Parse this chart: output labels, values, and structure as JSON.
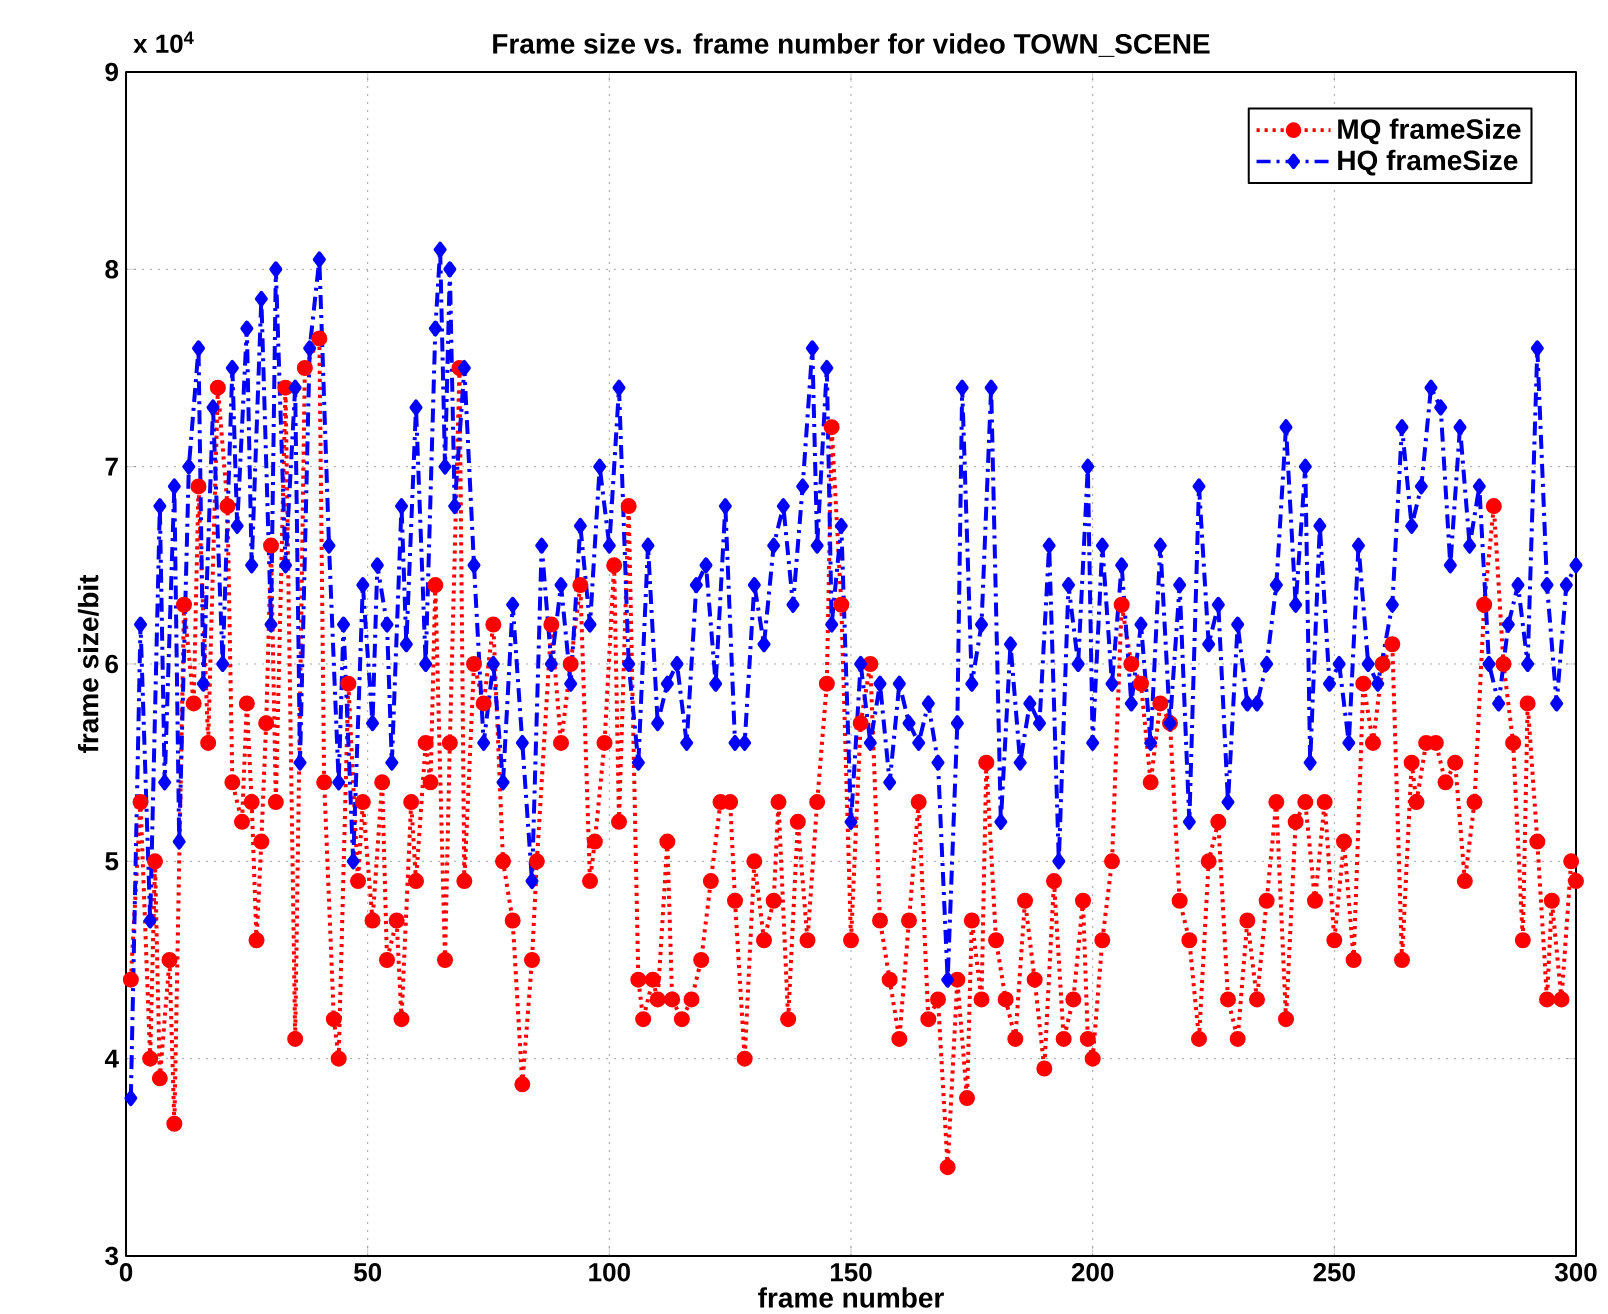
{
  "chart_data": {
    "type": "line",
    "title": "Frame size vs. frame number for video TOWN_SCENE",
    "xlabel": "frame number",
    "ylabel": "frame size/bit",
    "annotations": [
      "x 10$^{4}$"
    ],
    "xlim": [
      0,
      300
    ],
    "ylim": [
      3,
      9
    ],
    "xticks": [
      0,
      50,
      100,
      150,
      200,
      250,
      300
    ],
    "yticks": [
      3,
      4,
      5,
      6,
      7,
      8,
      9
    ],
    "grid": true,
    "legend": "top right",
    "series": [
      {
        "name": "MQ frameSize",
        "color": "#ff0000",
        "marker": "circle",
        "line_style": "dotted",
        "x": [
          1,
          3,
          5,
          6,
          7,
          9,
          10,
          12,
          14,
          15,
          17,
          19,
          21,
          22,
          24,
          25,
          26,
          27,
          28,
          29,
          30,
          31,
          33,
          35,
          37,
          40,
          41,
          43,
          44,
          46,
          48,
          49,
          51,
          53,
          54,
          56,
          57,
          59,
          60,
          62,
          63,
          64,
          66,
          67,
          69,
          70,
          72,
          74,
          76,
          78,
          80,
          82,
          84,
          85,
          88,
          90,
          92,
          94,
          96,
          97,
          99,
          101,
          102,
          104,
          106,
          107,
          109,
          110,
          112,
          113,
          115,
          117,
          119,
          121,
          123,
          125,
          126,
          128,
          130,
          132,
          134,
          135,
          137,
          139,
          141,
          143,
          145,
          146,
          148,
          150,
          152,
          154,
          156,
          158,
          160,
          162,
          164,
          166,
          168,
          170,
          172,
          174,
          175,
          177,
          178,
          180,
          182,
          184,
          186,
          188,
          190,
          192,
          194,
          196,
          198,
          199,
          200,
          202,
          204,
          206,
          208,
          210,
          212,
          214,
          216,
          218,
          220,
          222,
          224,
          226,
          228,
          230,
          232,
          234,
          236,
          238,
          240,
          242,
          244,
          246,
          248,
          250,
          252,
          254,
          256,
          258,
          260,
          262,
          264,
          266,
          267,
          269,
          271,
          273,
          275,
          277,
          279,
          281,
          283,
          285,
          287,
          289,
          290,
          292,
          294,
          295,
          297,
          299,
          300
        ],
        "values": [
          4.4,
          5.3,
          4.0,
          5.0,
          3.9,
          4.5,
          3.67,
          6.3,
          5.8,
          6.9,
          5.6,
          7.4,
          6.8,
          5.4,
          5.2,
          5.8,
          5.3,
          4.6,
          5.1,
          5.7,
          6.6,
          5.3,
          7.4,
          4.1,
          7.5,
          7.65,
          5.4,
          4.2,
          4.0,
          5.9,
          4.9,
          5.3,
          4.7,
          5.4,
          4.5,
          4.7,
          4.2,
          5.3,
          4.9,
          5.6,
          5.4,
          6.4,
          4.5,
          5.6,
          7.5,
          4.9,
          6.0,
          5.8,
          6.2,
          5.0,
          4.7,
          3.87,
          4.5,
          5.0,
          6.2,
          5.6,
          6.0,
          6.4,
          4.9,
          5.1,
          5.6,
          6.5,
          5.2,
          6.8,
          4.4,
          4.2,
          4.4,
          4.3,
          5.1,
          4.3,
          4.2,
          4.3,
          4.5,
          4.9,
          5.3,
          5.3,
          4.8,
          4.0,
          5.0,
          4.6,
          4.8,
          5.3,
          4.2,
          5.2,
          4.6,
          5.3,
          5.9,
          7.2,
          6.3,
          4.6,
          5.7,
          6.0,
          4.7,
          4.4,
          4.1,
          4.7,
          5.3,
          4.2,
          4.3,
          3.45,
          4.4,
          3.8,
          4.7,
          4.3,
          5.5,
          4.6,
          4.3,
          4.1,
          4.8,
          4.4,
          3.95,
          4.9,
          4.1,
          4.3,
          4.8,
          4.1,
          4.0,
          4.6,
          5.0,
          6.3,
          6.0,
          5.9,
          5.4,
          5.8,
          5.7,
          4.8,
          4.6,
          4.1,
          5.0,
          5.2,
          4.3,
          4.1,
          4.7,
          4.3,
          4.8,
          5.3,
          4.2,
          5.2,
          5.3,
          4.8,
          5.3,
          4.6,
          5.1,
          4.5,
          5.9,
          5.6,
          6.0,
          6.1,
          4.5,
          5.5,
          5.3,
          5.6,
          5.6,
          5.4,
          5.5,
          4.9,
          5.3,
          6.3,
          6.8,
          6.0,
          5.6,
          4.6,
          5.8,
          5.1,
          4.3,
          4.8,
          4.3,
          5.0,
          4.9
        ]
      },
      {
        "name": "HQ frameSize",
        "color": "#0000ff",
        "marker": "diamond",
        "line_style": "dashed",
        "x": [
          1,
          3,
          5,
          7,
          8,
          10,
          11,
          13,
          15,
          16,
          18,
          20,
          22,
          23,
          25,
          26,
          28,
          30,
          31,
          33,
          35,
          36,
          38,
          40,
          42,
          44,
          45,
          47,
          49,
          51,
          52,
          54,
          55,
          57,
          58,
          60,
          62,
          64,
          65,
          66,
          67,
          68,
          70,
          72,
          74,
          76,
          78,
          80,
          82,
          84,
          86,
          88,
          90,
          92,
          94,
          96,
          98,
          100,
          102,
          104,
          106,
          108,
          110,
          112,
          114,
          116,
          118,
          120,
          122,
          124,
          126,
          128,
          130,
          132,
          134,
          136,
          138,
          140,
          142,
          143,
          145,
          146,
          148,
          150,
          152,
          154,
          156,
          158,
          160,
          162,
          164,
          166,
          168,
          170,
          172,
          173,
          175,
          177,
          179,
          181,
          183,
          185,
          187,
          189,
          191,
          193,
          195,
          197,
          199,
          200,
          202,
          204,
          206,
          208,
          210,
          212,
          214,
          216,
          218,
          220,
          222,
          224,
          226,
          228,
          230,
          232,
          234,
          236,
          238,
          240,
          242,
          244,
          245,
          247,
          249,
          251,
          253,
          255,
          257,
          259,
          262,
          264,
          266,
          268,
          270,
          272,
          274,
          276,
          278,
          280,
          282,
          284,
          286,
          288,
          290,
          292,
          294,
          296,
          298,
          300
        ],
        "values": [
          3.8,
          6.2,
          4.7,
          6.8,
          5.4,
          6.9,
          5.1,
          7.0,
          7.6,
          5.9,
          7.3,
          6.0,
          7.5,
          6.7,
          7.7,
          6.5,
          7.85,
          6.2,
          8.0,
          6.5,
          7.4,
          5.5,
          7.6,
          8.05,
          6.6,
          5.4,
          6.2,
          5.0,
          6.4,
          5.7,
          6.5,
          6.2,
          5.5,
          6.8,
          6.1,
          7.3,
          6.0,
          7.7,
          8.1,
          7.0,
          8.0,
          6.8,
          7.5,
          6.5,
          5.6,
          6.0,
          5.4,
          6.3,
          5.6,
          4.9,
          6.6,
          6.0,
          6.4,
          5.9,
          6.7,
          6.2,
          7.0,
          6.6,
          7.4,
          6.0,
          5.5,
          6.6,
          5.7,
          5.9,
          6.0,
          5.6,
          6.4,
          6.5,
          5.9,
          6.8,
          5.6,
          5.6,
          6.4,
          6.1,
          6.6,
          6.8,
          6.3,
          6.9,
          7.6,
          6.6,
          7.5,
          6.2,
          6.7,
          5.2,
          6.0,
          5.6,
          5.9,
          5.4,
          5.9,
          5.7,
          5.6,
          5.8,
          5.5,
          4.4,
          5.7,
          7.4,
          5.9,
          6.2,
          7.4,
          5.2,
          6.1,
          5.5,
          5.8,
          5.7,
          6.6,
          5.0,
          6.4,
          6.0,
          7.0,
          5.6,
          6.6,
          5.9,
          6.5,
          5.8,
          6.2,
          5.6,
          6.6,
          5.7,
          6.4,
          5.2,
          6.9,
          6.1,
          6.3,
          5.3,
          6.2,
          5.8,
          5.8,
          6.0,
          6.4,
          7.2,
          6.3,
          7.0,
          5.5,
          6.7,
          5.9,
          6.0,
          5.6,
          6.6,
          6.0,
          5.9,
          6.3,
          7.2,
          6.7,
          6.9,
          7.4,
          7.3,
          6.5,
          7.2,
          6.6,
          6.9,
          6.0,
          5.8,
          6.2,
          6.4,
          6.0,
          7.6,
          6.4,
          5.8,
          6.4,
          6.5
        ]
      }
    ]
  }
}
